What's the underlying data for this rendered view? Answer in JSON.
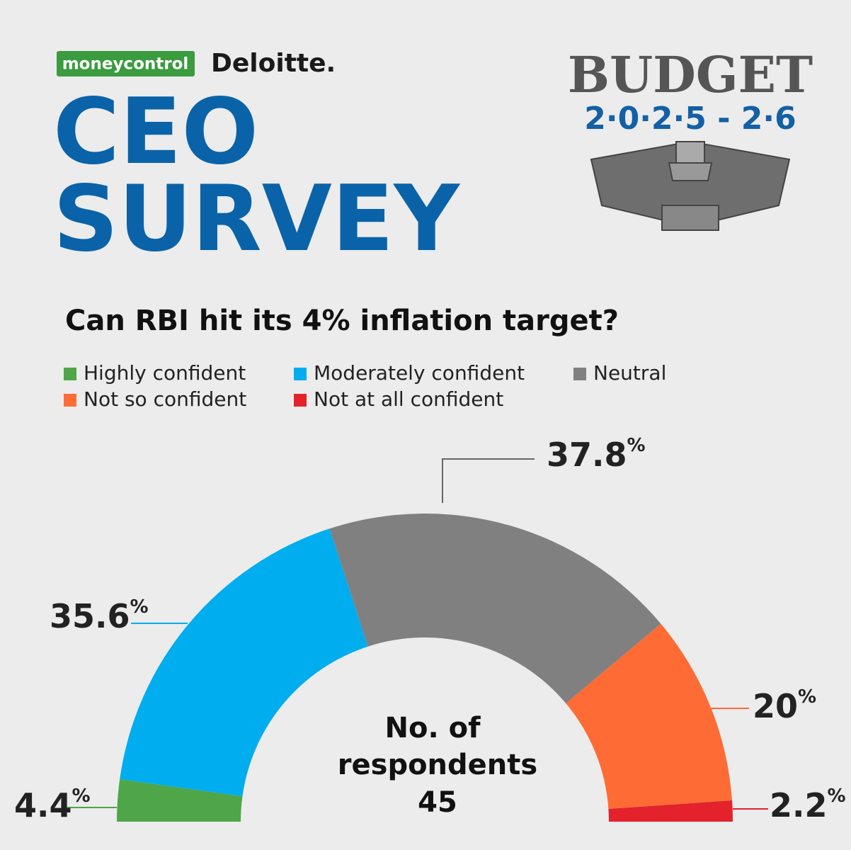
{
  "header": {
    "brand_1": "moneycontrol",
    "brand_2": "Deloitte.",
    "title_line_1": "CEO",
    "title_line_2": "SURVEY",
    "badge_title": "BUDGET",
    "badge_years": "2·0·2·5 - 2·6"
  },
  "chart_data": {
    "type": "pie",
    "layout": "semicircle-donut",
    "title": "Can RBI hit its 4% inflation target?",
    "categories": [
      "Highly confident",
      "Moderately confident",
      "Neutral",
      "Not so confident",
      "Not at all confident"
    ],
    "values": [
      4.4,
      35.6,
      37.8,
      20,
      2.2
    ],
    "value_labels": [
      "4.4%",
      "35.6%",
      "37.8%",
      "20%",
      "2.2%"
    ],
    "colors": [
      "#4ea648",
      "#00adef",
      "#808080",
      "#ff6b35",
      "#e4222b"
    ],
    "center_label": "No. of respondents",
    "respondents": 45
  }
}
